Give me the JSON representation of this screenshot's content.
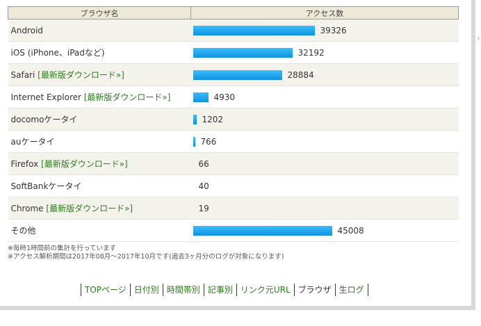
{
  "table": {
    "header_browser": "ブラウザ名",
    "header_access": "アクセス数",
    "max_value": 45008,
    "rows": [
      {
        "name": "Android",
        "link": "",
        "value": 39326,
        "value_text": "39326"
      },
      {
        "name": "iOS (iPhone、iPadなど)",
        "link": "",
        "value": 32192,
        "value_text": "32192"
      },
      {
        "name": "Safari ",
        "link": "[最新版ダウンロード»]",
        "value": 28884,
        "value_text": "28884"
      },
      {
        "name": "Internet Explorer ",
        "link": "[最新版ダウンロード»]",
        "value": 4930,
        "value_text": "4930"
      },
      {
        "name": "docomoケータイ",
        "link": "",
        "value": 1202,
        "value_text": "1202"
      },
      {
        "name": "auケータイ",
        "link": "",
        "value": 766,
        "value_text": "766"
      },
      {
        "name": "Firefox ",
        "link": "[最新版ダウンロード»]",
        "value": 66,
        "value_text": "66"
      },
      {
        "name": "SoftBankケータイ",
        "link": "",
        "value": 40,
        "value_text": "40"
      },
      {
        "name": "Chrome ",
        "link": "[最新版ダウンロード»]",
        "value": 19,
        "value_text": "19"
      },
      {
        "name": "その他",
        "link": "",
        "value": 45008,
        "value_text": "45008"
      }
    ]
  },
  "notes": {
    "line1": "※毎時1時間前の集計を行っています",
    "line2": "※アクセス解析期間は2017年08月～2017年10月です(過去3ヶ月分のログが対象になります)"
  },
  "nav": {
    "top": "TOPページ",
    "by_date": "日付別",
    "by_hour": "時間帯別",
    "by_article": "記事別",
    "referrer": "リンク元URL",
    "browser": "ブラウザ",
    "raw_log": "生ログ"
  },
  "colors": {
    "bar": "#16a3ee",
    "link": "#2d7a1e",
    "header_bg": "#ece9d8"
  }
}
